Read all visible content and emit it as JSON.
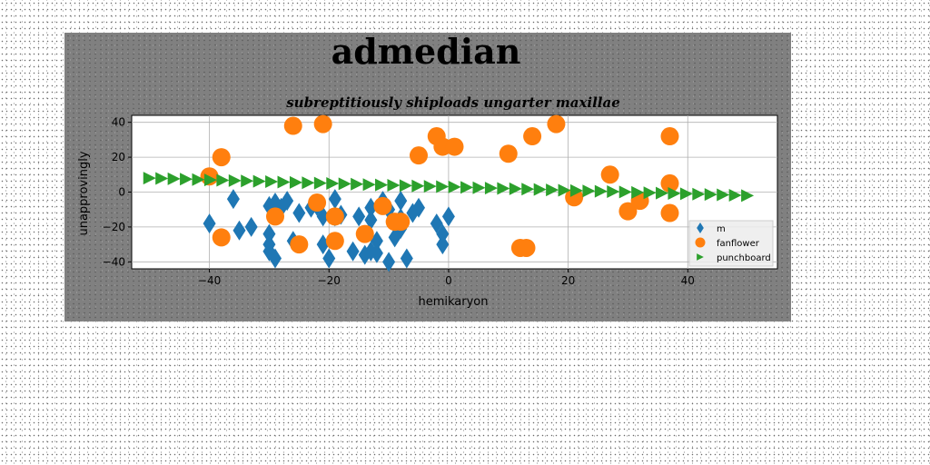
{
  "chart_data": {
    "type": "scatter",
    "title": "admedian",
    "subtitle": "subreptitiously shiploads ungarter maxillae",
    "xlabel": "hemikaryon",
    "ylabel": "unapprovingly",
    "xlim": [
      -53,
      55
    ],
    "ylim": [
      -44,
      44
    ],
    "xticks": [
      -40,
      -20,
      0,
      20,
      40
    ],
    "yticks": [
      -40,
      -20,
      0,
      20,
      40
    ],
    "grid": true,
    "legend_position": "lower-right",
    "series": [
      {
        "name": "m",
        "marker": "diamond",
        "color": "#1f77b4",
        "points": [
          [
            -40,
            -18
          ],
          [
            -36,
            -4
          ],
          [
            -35,
            -22
          ],
          [
            -33,
            -20
          ],
          [
            -30,
            -8
          ],
          [
            -30,
            -24
          ],
          [
            -30,
            -30
          ],
          [
            -30,
            -34
          ],
          [
            -29,
            -38
          ],
          [
            -29,
            -6
          ],
          [
            -28,
            -9
          ],
          [
            -27,
            -5
          ],
          [
            -26,
            -28
          ],
          [
            -25,
            -12
          ],
          [
            -23,
            -9
          ],
          [
            -22,
            -8
          ],
          [
            -21,
            -30
          ],
          [
            -21,
            -14
          ],
          [
            -20,
            -38
          ],
          [
            -19,
            -4
          ],
          [
            -19,
            -14
          ],
          [
            -18,
            -13
          ],
          [
            -16,
            -34
          ],
          [
            -15,
            -14
          ],
          [
            -14,
            -36
          ],
          [
            -13,
            -34
          ],
          [
            -13,
            -16
          ],
          [
            -13,
            -9
          ],
          [
            -12,
            -28
          ],
          [
            -12,
            -35
          ],
          [
            -11,
            -5
          ],
          [
            -10,
            -40
          ],
          [
            -10,
            -10
          ],
          [
            -9,
            -26
          ],
          [
            -8,
            -21
          ],
          [
            -8,
            -5
          ],
          [
            -8,
            -15
          ],
          [
            -7,
            -38
          ],
          [
            -6,
            -12
          ],
          [
            -5,
            -9
          ],
          [
            -2,
            -18
          ],
          [
            -1,
            -24
          ],
          [
            -1,
            -30
          ],
          [
            0,
            -14
          ]
        ]
      },
      {
        "name": "fanflower",
        "marker": "circle",
        "color": "#ff7f0e",
        "points": [
          [
            -40,
            9
          ],
          [
            -38,
            20
          ],
          [
            -38,
            -26
          ],
          [
            -29,
            -14
          ],
          [
            -26,
            38
          ],
          [
            -25,
            -30
          ],
          [
            -22,
            -6
          ],
          [
            -21,
            39
          ],
          [
            -19,
            -14
          ],
          [
            -19,
            -28
          ],
          [
            -14,
            -24
          ],
          [
            -11,
            -8
          ],
          [
            -9,
            -17
          ],
          [
            -8,
            -17
          ],
          [
            -5,
            21
          ],
          [
            -2,
            32
          ],
          [
            -1,
            26
          ],
          [
            1,
            26
          ],
          [
            10,
            22
          ],
          [
            12,
            -32
          ],
          [
            13,
            -32
          ],
          [
            14,
            32
          ],
          [
            18,
            39
          ],
          [
            21,
            -3
          ],
          [
            27,
            10
          ],
          [
            30,
            -11
          ],
          [
            32,
            -5
          ],
          [
            37,
            32
          ],
          [
            37,
            5
          ],
          [
            37,
            -12
          ]
        ]
      },
      {
        "name": "punchboard",
        "marker": "triangle-right",
        "color": "#2ca02c",
        "x_start": -50,
        "x_end": 50,
        "y_start": 8,
        "y_end": -2,
        "n": 50
      }
    ]
  }
}
